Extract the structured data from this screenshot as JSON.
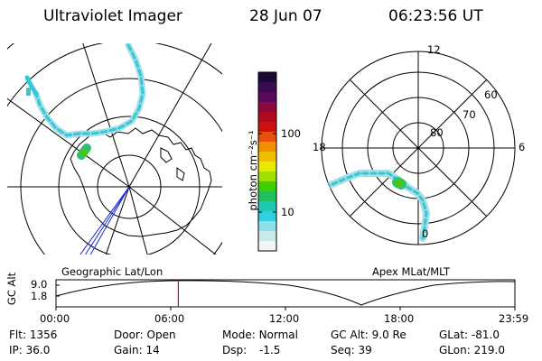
{
  "header": {
    "instrument": "Ultraviolet Imager",
    "date": "28 Jun 07",
    "time": "06:23:56 UT"
  },
  "colorbar": {
    "unit_label": "photon cm⁻²s⁻¹",
    "ticks": [
      "100",
      "10"
    ],
    "colors": [
      "#1a0a33",
      "#3a0a55",
      "#5a0a5a",
      "#8a0a40",
      "#b00a20",
      "#d01010",
      "#e85010",
      "#f09000",
      "#f0c000",
      "#e8e800",
      "#a0e000",
      "#40d000",
      "#20c060",
      "#20c8b0",
      "#30d0e0",
      "#90e0e8",
      "#c8e8ec",
      "#f0f4f4"
    ]
  },
  "geo_map": {
    "label": "Geographic Lat/Lon"
  },
  "apex_map": {
    "label": "Apex MLat/MLT",
    "lat_labels": [
      "80",
      "70",
      "60"
    ],
    "mlt_labels": {
      "top": "12",
      "left": "18",
      "right": "6",
      "bottom": "0"
    }
  },
  "altitude_plot": {
    "ylabel": "GC Alt",
    "y_ticks": [
      "9.0",
      "1.8"
    ],
    "x_ticks": [
      "00:00",
      "06:00",
      "12:00",
      "18:00",
      "23:59"
    ],
    "marker_time": "06:23:56",
    "marker_color": "#e00000"
  },
  "info": {
    "row1": [
      {
        "label": "Flt:",
        "value": "1356"
      },
      {
        "label": "Door:",
        "value": "Open"
      },
      {
        "label": "Mode:",
        "value": "Normal"
      },
      {
        "label": "GC Alt:",
        "value": "9.0 Re"
      },
      {
        "label": "GLat:",
        "value": "-81.0"
      }
    ],
    "row2": [
      {
        "label": "IP:",
        "value": "36.0"
      },
      {
        "label": "Gain:",
        "value": "14"
      },
      {
        "label": "Dsp:",
        "value": "-1.5"
      },
      {
        "label": "Seq:",
        "value": "39"
      },
      {
        "label": "GLon:",
        "value": "219.0"
      }
    ]
  }
}
